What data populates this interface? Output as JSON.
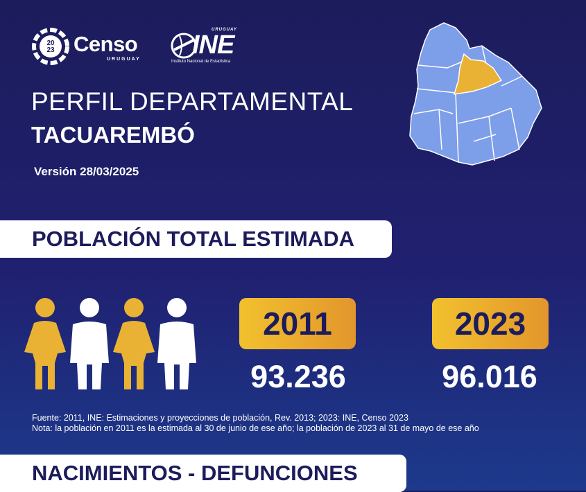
{
  "logos": {
    "censo": {
      "ring_year_top": "20",
      "ring_year_bottom": "23",
      "word": "Censo",
      "sub": "URUGUAY"
    },
    "ine": {
      "top": "URUGUAY",
      "word": "INE",
      "sub": "Instituto Nacional de Estadística"
    }
  },
  "header": {
    "title_line1": "PERFIL DEPARTAMENTAL",
    "title_line2": "TACUAREMBÓ",
    "version": "Versión 28/03/2025"
  },
  "colors": {
    "background": "#1c1c5c",
    "map_department": "#7d9ee8",
    "map_highlight": "#e9b234",
    "accent_gold": "#f2c12e",
    "accent_orange": "#e2962c"
  },
  "section_poblacion": {
    "title": "POBLACIÓN TOTAL ESTIMADA",
    "years": [
      {
        "year": "2011",
        "value": "93.236"
      },
      {
        "year": "2023",
        "value": "96.016"
      }
    ],
    "source": "Fuente: 2011, INE: Estimaciones y proyecciones de población, Rev. 2013; 2023: INE, Censo 2023",
    "note": "Nota: la población en 2011 es la estimada al 30 de junio de ese año; la población de 2023 al 31 de mayo de ese año"
  },
  "section_nacimientos": {
    "title": "NACIMIENTOS - DEFUNCIONES"
  }
}
